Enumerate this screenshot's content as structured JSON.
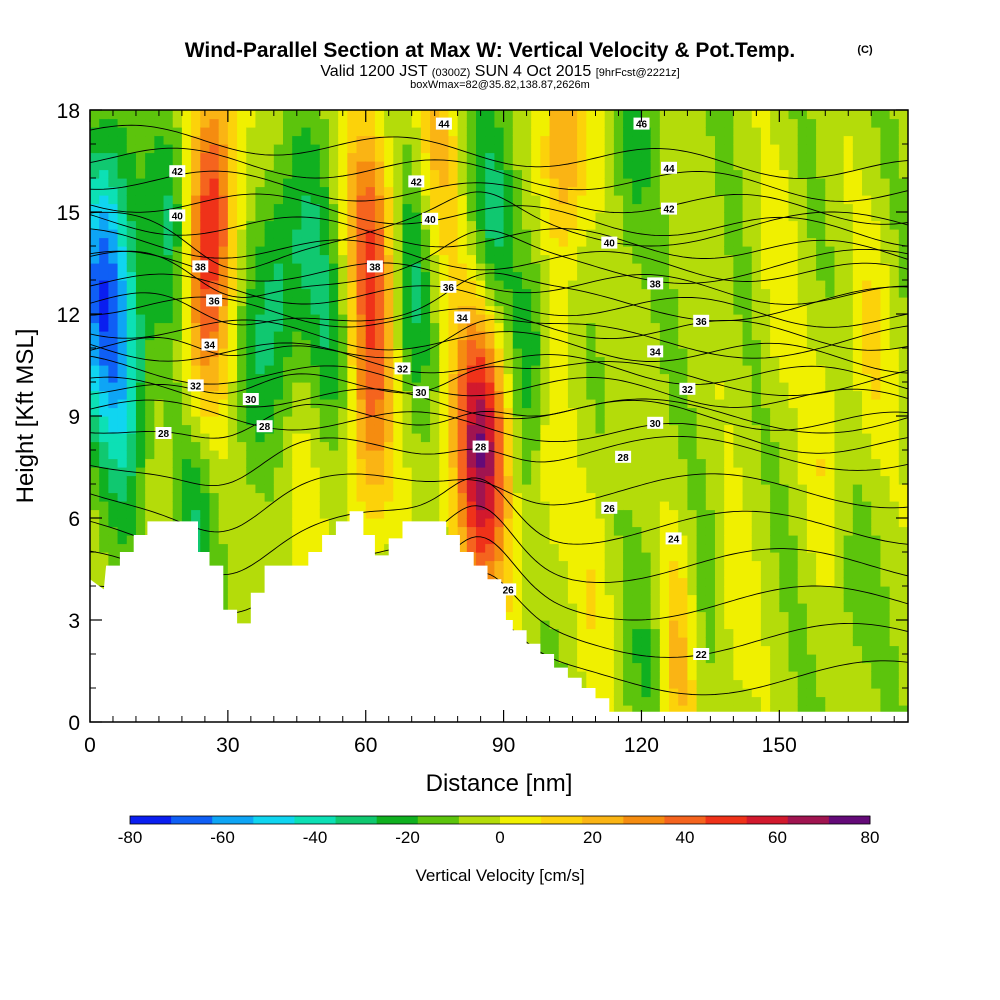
{
  "chart_data": {
    "type": "heatmap",
    "title": "Wind-Parallel Section at Max W: Vertical Velocity & Pot.Temp.",
    "title_mark": "(C)",
    "subtitle_main": "Valid 1200 JST",
    "subtitle_utc": "(0300Z)",
    "subtitle_date": "SUN 4 Oct 2015",
    "subtitle_fcst": "[9hrFcst@2221z]",
    "subtitle_box": "boxWmax=82@35.82,138.87,2626m",
    "xlabel": "Distance [nm]",
    "ylabel": "Height [Kft MSL]",
    "xlim": [
      0,
      178
    ],
    "ylim": [
      0,
      18
    ],
    "xticks": [
      0,
      30,
      60,
      90,
      120,
      150
    ],
    "xtick_labels": [
      "0",
      "30",
      "60",
      "90",
      "120",
      "150"
    ],
    "yticks": [
      0,
      3,
      6,
      9,
      12,
      15,
      18
    ],
    "ytick_labels": [
      "0",
      "3",
      "6",
      "9",
      "12",
      "15",
      "18"
    ],
    "colorbar": {
      "title": "Vertical Velocity [cm/s]",
      "min": -80,
      "max": 80,
      "step": 10,
      "labels": [
        "-80",
        "-60",
        "-40",
        "-20",
        "0",
        "20",
        "40",
        "60",
        "80"
      ],
      "colors": [
        "#0a1ef0",
        "#0f5ff5",
        "#0ea5f5",
        "#10d5f0",
        "#0ce0b5",
        "#10c870",
        "#10b020",
        "#5cc40c",
        "#b4dc0a",
        "#f0f000",
        "#fcd20a",
        "#fab414",
        "#f58c10",
        "#f5641e",
        "#ef3219",
        "#d2192d",
        "#a01450",
        "#640a78"
      ]
    },
    "velocity_features": [
      {
        "x": 3,
        "z": 13,
        "w": -68
      },
      {
        "x": 8,
        "z": 10,
        "w": -35
      },
      {
        "x": 27,
        "z": 15.5,
        "w": 55
      },
      {
        "x": 24,
        "z": 11,
        "w": 30
      },
      {
        "x": 18,
        "z": 15,
        "w": -25
      },
      {
        "x": 41,
        "z": 13,
        "w": -25
      },
      {
        "x": 35,
        "z": 10,
        "w": -15
      },
      {
        "x": 47,
        "z": 14,
        "w": -20
      },
      {
        "x": 52,
        "z": 11,
        "w": -20
      },
      {
        "x": 58,
        "z": 15,
        "w": 15
      },
      {
        "x": 62,
        "z": 14,
        "w": 40
      },
      {
        "x": 61,
        "z": 9,
        "w": 40
      },
      {
        "x": 70,
        "z": 13,
        "w": -25
      },
      {
        "x": 76,
        "z": 17,
        "w": 25
      },
      {
        "x": 85,
        "z": 8,
        "w": 82
      },
      {
        "x": 88,
        "z": 15,
        "w": -30
      },
      {
        "x": 96,
        "z": 11,
        "w": -25
      },
      {
        "x": 103,
        "z": 17,
        "w": 40
      },
      {
        "x": 100,
        "z": 8,
        "w": 15
      },
      {
        "x": 118,
        "z": 17,
        "w": -15
      },
      {
        "x": 128,
        "z": 2,
        "w": 30
      },
      {
        "x": 122,
        "z": 2.5,
        "w": -15
      },
      {
        "x": 132,
        "z": 3,
        "w": -10
      },
      {
        "x": 140,
        "z": 2.5,
        "w": 10
      },
      {
        "x": 160,
        "z": 8,
        "w": 12
      },
      {
        "x": 170,
        "z": 11,
        "w": 15
      },
      {
        "x": 150,
        "z": 13,
        "w": 10
      },
      {
        "x": 165,
        "z": 3,
        "w": -8
      },
      {
        "x": 45,
        "z": 6,
        "w": 15
      },
      {
        "x": 22,
        "z": 6,
        "w": -25
      },
      {
        "x": 110,
        "z": 4,
        "w": 12
      }
    ],
    "theta_contours": {
      "levels": [
        22,
        24,
        26,
        28,
        30,
        32,
        34,
        36,
        38,
        40,
        42,
        44,
        46
      ],
      "labels": [
        {
          "text": "42",
          "x": 19,
          "z": 16.2
        },
        {
          "text": "40",
          "x": 19,
          "z": 14.9
        },
        {
          "text": "38",
          "x": 24,
          "z": 13.4
        },
        {
          "text": "36",
          "x": 27,
          "z": 12.4
        },
        {
          "text": "34",
          "x": 26,
          "z": 11.1
        },
        {
          "text": "32",
          "x": 23,
          "z": 9.9
        },
        {
          "text": "30",
          "x": 35,
          "z": 9.5
        },
        {
          "text": "28",
          "x": 38,
          "z": 8.7
        },
        {
          "text": "28",
          "x": 16,
          "z": 8.5
        },
        {
          "text": "44",
          "x": 77,
          "z": 17.6
        },
        {
          "text": "42",
          "x": 71,
          "z": 15.9
        },
        {
          "text": "40",
          "x": 74,
          "z": 14.8
        },
        {
          "text": "38",
          "x": 62,
          "z": 13.4
        },
        {
          "text": "36",
          "x": 78,
          "z": 12.8
        },
        {
          "text": "34",
          "x": 81,
          "z": 11.9
        },
        {
          "text": "32",
          "x": 68,
          "z": 10.4
        },
        {
          "text": "30",
          "x": 72,
          "z": 9.7
        },
        {
          "text": "28",
          "x": 85,
          "z": 8.1
        },
        {
          "text": "46",
          "x": 120,
          "z": 17.6
        },
        {
          "text": "44",
          "x": 126,
          "z": 16.3
        },
        {
          "text": "42",
          "x": 126,
          "z": 15.1
        },
        {
          "text": "40",
          "x": 113,
          "z": 14.1
        },
        {
          "text": "38",
          "x": 123,
          "z": 12.9
        },
        {
          "text": "36",
          "x": 133,
          "z": 11.8
        },
        {
          "text": "34",
          "x": 123,
          "z": 10.9
        },
        {
          "text": "32",
          "x": 130,
          "z": 9.8
        },
        {
          "text": "30",
          "x": 123,
          "z": 8.8
        },
        {
          "text": "28",
          "x": 116,
          "z": 7.8
        },
        {
          "text": "26",
          "x": 113,
          "z": 6.3
        },
        {
          "text": "24",
          "x": 127,
          "z": 5.4
        },
        {
          "text": "26",
          "x": 91,
          "z": 3.9
        },
        {
          "text": "22",
          "x": 133,
          "z": 2.0
        }
      ]
    },
    "terrain_top_kft": [
      {
        "x": 0,
        "z": 4.2
      },
      {
        "x": 3,
        "z": 3.9
      },
      {
        "x": 3.5,
        "z": 4.6
      },
      {
        "x": 6.5,
        "z": 4.6
      },
      {
        "x": 6.5,
        "z": 5.0
      },
      {
        "x": 9.5,
        "z": 5.0
      },
      {
        "x": 9.5,
        "z": 5.5
      },
      {
        "x": 12.5,
        "z": 5.5
      },
      {
        "x": 12.5,
        "z": 5.9
      },
      {
        "x": 23.5,
        "z": 5.9
      },
      {
        "x": 23.5,
        "z": 5.0
      },
      {
        "x": 26,
        "z": 5.0
      },
      {
        "x": 26,
        "z": 4.6
      },
      {
        "x": 29,
        "z": 4.6
      },
      {
        "x": 29,
        "z": 3.3
      },
      {
        "x": 32,
        "z": 3.3
      },
      {
        "x": 32,
        "z": 2.9
      },
      {
        "x": 35,
        "z": 2.9
      },
      {
        "x": 35,
        "z": 3.8
      },
      {
        "x": 38,
        "z": 3.8
      },
      {
        "x": 38,
        "z": 4.6
      },
      {
        "x": 47.5,
        "z": 4.6
      },
      {
        "x": 47.5,
        "z": 5.0
      },
      {
        "x": 50.5,
        "z": 5.0
      },
      {
        "x": 50.5,
        "z": 5.5
      },
      {
        "x": 53.5,
        "z": 5.5
      },
      {
        "x": 53.5,
        "z": 5.9
      },
      {
        "x": 56.5,
        "z": 5.9
      },
      {
        "x": 56.5,
        "z": 6.2
      },
      {
        "x": 59.5,
        "z": 6.2
      },
      {
        "x": 59.5,
        "z": 5.5
      },
      {
        "x": 62,
        "z": 5.5
      },
      {
        "x": 62,
        "z": 4.9
      },
      {
        "x": 65,
        "z": 4.9
      },
      {
        "x": 65,
        "z": 5.4
      },
      {
        "x": 68,
        "z": 5.4
      },
      {
        "x": 68,
        "z": 5.9
      },
      {
        "x": 77.5,
        "z": 5.9
      },
      {
        "x": 77.5,
        "z": 5.5
      },
      {
        "x": 80.5,
        "z": 5.5
      },
      {
        "x": 80.5,
        "z": 5.0
      },
      {
        "x": 83.5,
        "z": 5.0
      },
      {
        "x": 83.5,
        "z": 4.6
      },
      {
        "x": 86.5,
        "z": 4.6
      },
      {
        "x": 86.5,
        "z": 4.2
      },
      {
        "x": 89.5,
        "z": 4.2
      },
      {
        "x": 89.5,
        "z": 3.8
      },
      {
        "x": 90.5,
        "z": 3.8
      },
      {
        "x": 90.5,
        "z": 3.0
      },
      {
        "x": 92,
        "z": 3.0
      },
      {
        "x": 92,
        "z": 2.7
      },
      {
        "x": 95,
        "z": 2.7
      },
      {
        "x": 95,
        "z": 2.3
      },
      {
        "x": 98,
        "z": 2.3
      },
      {
        "x": 98,
        "z": 2.0
      },
      {
        "x": 101,
        "z": 2.0
      },
      {
        "x": 101,
        "z": 1.6
      },
      {
        "x": 104,
        "z": 1.6
      },
      {
        "x": 104,
        "z": 1.3
      },
      {
        "x": 107,
        "z": 1.3
      },
      {
        "x": 107,
        "z": 1.0
      },
      {
        "x": 110,
        "z": 1.0
      },
      {
        "x": 110,
        "z": 0.7
      },
      {
        "x": 113,
        "z": 0.7
      },
      {
        "x": 113,
        "z": 0.3
      },
      {
        "x": 178,
        "z": 0.3
      }
    ]
  }
}
